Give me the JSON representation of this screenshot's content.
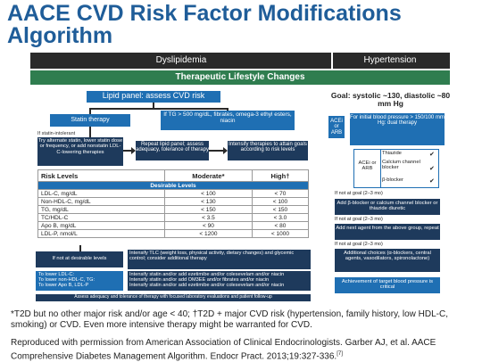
{
  "slide": {
    "title": "AACE CVD Risk Factor Modifications Algorithm",
    "header_dyslipidemia": "Dyslipidemia",
    "header_hypertension": "Hypertension",
    "tlc": "Therapeutic Lifestyle Changes"
  },
  "dys": {
    "lipid_panel": "Lipid panel: assess CVD risk",
    "statin": "Statin therapy",
    "tg": "If TG > 500 mg/dL, fibrates, omega-3 ethyl esters, niacin",
    "intolerant": "If statin-intolerant",
    "alt": "Try alternate statin, lower statin dose or frequency, or add nonstatin LDL-C-lowering therapies",
    "repeat": "Repeat lipid panel; assess adequacy, tolerance of therapy",
    "intensify": "Intensify therapies to attain goals according to risk levels"
  },
  "table": {
    "headers": [
      "Risk Levels",
      "Moderate*",
      "High†"
    ],
    "desirable": "Desirable Levels",
    "rows": [
      [
        "LDL-C, mg/dL",
        "< 100",
        "< 70"
      ],
      [
        "Non-HDL-C, mg/dL",
        "< 130",
        "< 100"
      ],
      [
        "TG, mg/dL",
        "< 150",
        "< 150"
      ],
      [
        "TC/HDL-C",
        "< 3.5",
        "< 3.0"
      ],
      [
        "Apo B, mg/dL",
        "< 90",
        "< 80"
      ],
      [
        "LDL-P, nmol/L",
        "< 1200",
        "< 1000"
      ]
    ]
  },
  "bottom": {
    "not_goal": "If not at desirable levels",
    "not_goal_text": "Intensify TLC (weight loss, physical activity, dietary changes) and glycemic control; consider additional therapy",
    "lower_lines": [
      "To lower LDL-C:",
      "To lower non-HDL-C, TG:",
      "To lower Apo B, LDL-P"
    ],
    "lower_text": [
      "Intensify statin and/or add ezetimibe and/or colesevelam and/or niacin",
      "Intensify statin and/or add OM3EE and/or fibrates and/or niacin",
      "Intensify statin and/or add ezetimibe and/or colesevelam and/or niacin"
    ],
    "assess": "Assess adequacy and tolerance of therapy with focused laboratory evaluations and patient follow-up"
  },
  "hyp": {
    "goal": "Goal: systolic ~130, diastolic ~80 mm Hg",
    "acei": "ACEi or ARB",
    "initial": "For initial blood pressure > 150/100 mm Hg: dual therapy",
    "combo_left": "ACEi or ARB",
    "combo_items": [
      "Thiazide",
      "Calcium channel blocker",
      "β-blocker"
    ],
    "check": "✔",
    "not_goal_1": "If not at goal (2–3 mo)",
    "add_bblock": "Add β-blocker or calcium channel blocker or thiazide diuretic",
    "not_goal_2": "If not at goal (2–3 mo)",
    "add_next": "Add next agent from the above group, repeat",
    "not_goal_3": "If not at goal (2–3 mo)",
    "additional": "Additional choices (α-blockers, central agents, vasodilators, spironolactone)",
    "achieve": "Achievement of target blood pressure is critical"
  },
  "notes": {
    "footnote": "*T2D but no other major risk and/or age < 40; †T2D + major CVD risk (hypertension, family history, low HDL-C, smoking) or CVD. Even more intensive therapy might be warranted for CVD.",
    "citation": "Reproduced with permission from American Association of Clinical Endocrinologists. Garber AJ, et al. AACE Comprehensive Diabetes Management Algorithm. Endocr Pract. 2013;19:327-336.",
    "ref": "[7]"
  },
  "colors": {
    "blue": "#1f6fb3",
    "navy": "#1e3a5c",
    "green": "#2f7d4f",
    "title": "#1f5d99"
  }
}
